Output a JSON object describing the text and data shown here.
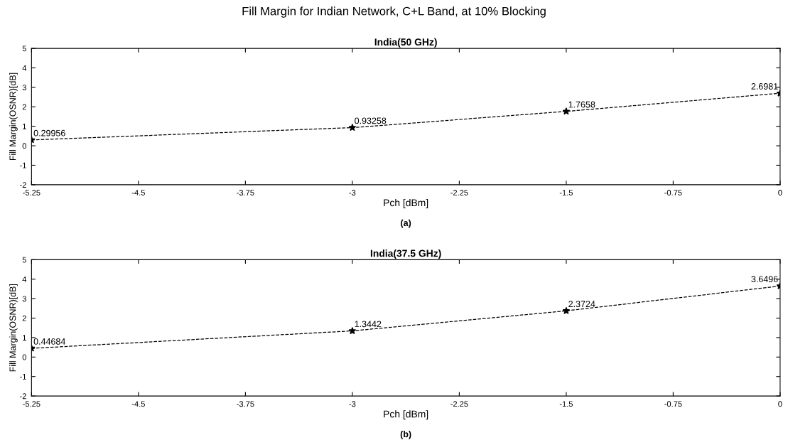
{
  "chart_data": [
    {
      "type": "line",
      "title": "Fill Margin for Indian Network, C+L Band, at 10% Blocking",
      "subtitle": "India(50 GHz)",
      "xlabel": "Pch [dBm]",
      "ylabel": "Fill Margin(OSNR)[dB]",
      "annotations": [
        "(a)"
      ],
      "x": [
        -5.25,
        -3,
        -1.5,
        0
      ],
      "series": [
        {
          "color": "#000000",
          "values": [
            0.29956,
            0.93258,
            1.7658,
            2.6981
          ]
        }
      ],
      "xlim": [
        -5.25,
        0
      ],
      "xticks": [
        -5.25,
        -4.5,
        -3.75,
        -3,
        -2.25,
        -1.5,
        -0.75,
        0
      ],
      "ylim": [
        -2,
        5
      ],
      "yticks": [
        -2,
        -1,
        0,
        1,
        2,
        3,
        4,
        5
      ],
      "data_labels": true,
      "marker": "star",
      "line_style": "dashed",
      "grid": false
    },
    {
      "type": "line",
      "title": "India(37.5 GHz)",
      "xlabel": "Pch [dBm]",
      "ylabel": "Fill Margin(OSNR)[dB]",
      "annotations": [
        "(b)"
      ],
      "x": [
        -5.25,
        -3,
        -1.5,
        0
      ],
      "series": [
        {
          "color": "#000000",
          "values": [
            0.44684,
            1.3442,
            2.3724,
            3.6496
          ]
        }
      ],
      "xlim": [
        -5.25,
        0
      ],
      "xticks": [
        -5.25,
        -4.5,
        -3.75,
        -3,
        -2.25,
        -1.5,
        -0.75,
        0
      ],
      "ylim": [
        -2,
        5
      ],
      "yticks": [
        -2,
        -1,
        0,
        1,
        2,
        3,
        4,
        5
      ],
      "data_labels": true,
      "marker": "star",
      "line_style": "dashed",
      "grid": false
    }
  ]
}
